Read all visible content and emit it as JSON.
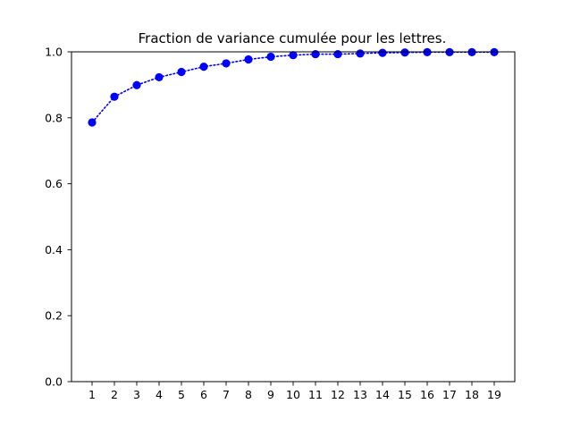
{
  "chart_data": {
    "type": "line",
    "title": "Fraction de variance cumulée pour les lettres.",
    "xlabel": "",
    "ylabel": "",
    "x": [
      1,
      2,
      3,
      4,
      5,
      6,
      7,
      8,
      9,
      10,
      11,
      12,
      13,
      14,
      15,
      16,
      17,
      18,
      19
    ],
    "xticks": [
      "1",
      "2",
      "3",
      "4",
      "5",
      "6",
      "7",
      "8",
      "9",
      "10",
      "11",
      "12",
      "13",
      "14",
      "15",
      "16",
      "17",
      "18",
      "19"
    ],
    "yticks": [
      "0.0",
      "0.2",
      "0.4",
      "0.6",
      "0.8",
      "1.0"
    ],
    "ylim": [
      0.0,
      1.0
    ],
    "xlim": [
      0.08,
      19.92
    ],
    "grid": false,
    "legend": "none",
    "series": [
      {
        "values": [
          0.786,
          0.864,
          0.899,
          0.923,
          0.939,
          0.955,
          0.965,
          0.977,
          0.985,
          0.99,
          0.993,
          0.993,
          0.995,
          0.997,
          0.998,
          0.999,
          0.999,
          0.999,
          0.999
        ],
        "color": "#0000ff",
        "line_style": "dotted",
        "marker": "circle"
      }
    ]
  }
}
